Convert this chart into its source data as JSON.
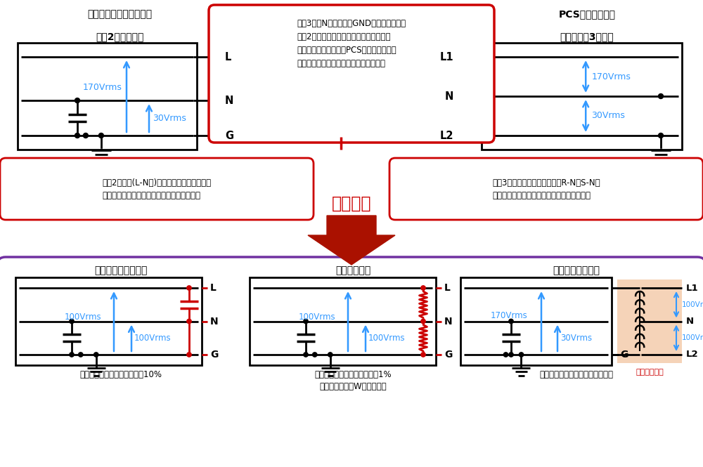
{
  "bg_color": "#ffffff",
  "blue_color": "#3399ff",
  "red_color": "#cc0000",
  "purple_border": "#7030a0",
  "top_callout_text": "単相3線のN（中点）はGND設置である為、\n単相2線と接続する場合、以下の接続を用\nいる事がありますが、PCSでは系統判定機\n能がある為本接続では認識でいません。",
  "left_title1": "交流電源やインバータの",
  "left_title2": "単相2線出力方式",
  "right_title1": "PCSなど系統電源",
  "right_title2": "機器の単相3線出力",
  "left_caption": "単相2線出力(L-N間)はフローティング出力。\n電位を安定させる為に、コンデンサで接地。",
  "right_caption": "単相3線で接続されているか？R-N、S-N間\nが中間電圧か測定して判定する機能を内蔵。",
  "kaiketsu_label": "解決方法",
  "sol1_title": "コンデンサ分圧方式",
  "sol2_title": "抵抗分圧方式",
  "sol3_title": "単巻トランス方式",
  "sol1_caption": "対策コスト小。電圧バラツキ10%",
  "sol2_caption": "対策コスト小。電圧バラツキ1%\n抵抗選定で数十W程度が必須",
  "sol3_caption": "コスト大。ただし一番電圧が安定",
  "tanmaki_label": "単巻トランス"
}
